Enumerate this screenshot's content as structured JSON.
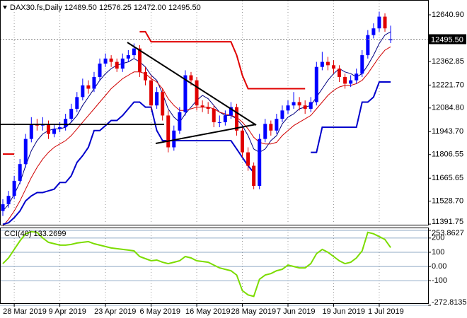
{
  "chart_data": [
    {
      "type": "candlestick",
      "subtitle": "DAX30.fs,Daily  12489.50 12576.25 12472.00 12495.50",
      "categories": [
        null,
        null,
        "28 Mar 2019",
        null,
        null,
        null,
        null,
        null,
        null,
        null,
        "9 Apr 2019",
        null,
        null,
        null,
        null,
        null,
        null,
        null,
        "23 Apr 2019",
        null,
        null,
        null,
        null,
        null,
        null,
        null,
        "6 May 2019",
        null,
        null,
        null,
        null,
        null,
        null,
        null,
        "16 May 2019",
        null,
        null,
        null,
        null,
        null,
        null,
        null,
        "28 May 2019",
        null,
        null,
        null,
        null,
        null,
        null,
        null,
        "7 Jun 2019",
        null,
        null,
        null,
        null,
        null,
        null,
        null,
        "19 Jun 2019",
        null,
        null,
        null,
        null,
        null,
        null,
        null,
        "1 Jul 2019",
        null,
        null
      ],
      "open": [
        11470,
        11510,
        11560,
        11650,
        11750,
        11900,
        11990,
        11980,
        11990,
        11930,
        11960,
        11970,
        12020,
        12080,
        12150,
        12220,
        12200,
        12270,
        12350,
        12380,
        12360,
        12320,
        12380,
        12400,
        12440,
        12300,
        12250,
        12100,
        12180,
        12040,
        11850,
        11950,
        12060,
        12280,
        12250,
        12100,
        12090,
        12080,
        12000,
        12000,
        12040,
        12090,
        11950,
        11820,
        11740,
        11620,
        11900,
        11990,
        11950,
        12020,
        12070,
        12100,
        12120,
        12100,
        12080,
        12120,
        12330,
        12360,
        12340,
        12320,
        12270,
        12230,
        12250,
        12290,
        12400,
        12520,
        12560,
        12630,
        12489.5
      ],
      "high": [
        11540,
        11590,
        11680,
        11780,
        11930,
        12030,
        12020,
        12030,
        12010,
        11990,
        12000,
        12050,
        12110,
        12180,
        12260,
        12250,
        12300,
        12380,
        12410,
        12400,
        12380,
        12410,
        12430,
        12470,
        12460,
        12330,
        12280,
        12210,
        12200,
        12070,
        11980,
        12090,
        12310,
        12300,
        12270,
        12130,
        12120,
        12100,
        12040,
        12070,
        12120,
        12110,
        11970,
        11850,
        11760,
        11930,
        12020,
        12010,
        12050,
        12100,
        12130,
        12180,
        12150,
        12130,
        12150,
        12360,
        12420,
        12390,
        12370,
        12340,
        12290,
        12280,
        12320,
        12430,
        12550,
        12590,
        12660,
        12650,
        12576.25
      ],
      "low": [
        11440,
        11490,
        11540,
        11630,
        11730,
        11880,
        11950,
        11950,
        11900,
        11910,
        11940,
        11950,
        12000,
        12060,
        12130,
        12170,
        12180,
        12250,
        12330,
        12330,
        12300,
        12300,
        12360,
        12380,
        12270,
        12220,
        12070,
        12080,
        12010,
        11820,
        11830,
        11930,
        12040,
        12220,
        12070,
        12060,
        12050,
        11970,
        11970,
        11980,
        12020,
        11920,
        11790,
        11710,
        11600,
        11600,
        11880,
        11920,
        11930,
        12000,
        12050,
        12080,
        12070,
        12050,
        12060,
        12100,
        12310,
        12310,
        12290,
        12240,
        12200,
        12210,
        12230,
        12270,
        12380,
        12500,
        12540,
        12540,
        12472
      ],
      "close": [
        11510,
        11560,
        11650,
        11750,
        11900,
        11990,
        11980,
        11990,
        11930,
        11960,
        11970,
        12020,
        12080,
        12150,
        12220,
        12200,
        12270,
        12350,
        12380,
        12360,
        12320,
        12380,
        12400,
        12440,
        12300,
        12250,
        12100,
        12180,
        12040,
        11850,
        11950,
        12060,
        12280,
        12250,
        12100,
        12090,
        12080,
        12000,
        12000,
        12040,
        12090,
        11950,
        11820,
        11740,
        11620,
        11900,
        11990,
        11950,
        12020,
        12070,
        12100,
        12120,
        12100,
        12080,
        12120,
        12330,
        12360,
        12340,
        12320,
        12270,
        12230,
        12250,
        12290,
        12400,
        12520,
        12560,
        12630,
        12560,
        12495.5
      ],
      "up_color": "#0000ff",
      "down_color": "#e00000",
      "series": [
        {
          "color": "#000080",
          "values": [
            11470,
            11510,
            11570,
            11640,
            11740,
            11830,
            11890,
            11930,
            11950,
            11960,
            11960,
            11970,
            12000,
            12040,
            12100,
            12150,
            12200,
            12250,
            12290,
            12320,
            12340,
            12350,
            12360,
            12380,
            12360,
            12330,
            12280,
            12250,
            12170,
            12080,
            12030,
            12000,
            12050,
            12090,
            12130,
            12160,
            12140,
            12100,
            12060,
            12040,
            12040,
            12020,
            11980,
            11920,
            11840,
            11820,
            11840,
            11890,
            11920,
            11990,
            12030,
            12050,
            12080,
            12090,
            12100,
            12150,
            12200,
            12250,
            12290,
            12320,
            12300,
            12290,
            12270,
            12290,
            12340,
            12400,
            12470,
            12520,
            12540
          ]
        },
        {
          "color": "#d00000",
          "values": [
            11380,
            11420,
            11470,
            11530,
            11600,
            11670,
            11730,
            11780,
            11820,
            11850,
            11870,
            11890,
            11920,
            11960,
            12000,
            12040,
            12080,
            12120,
            12160,
            12200,
            12230,
            12260,
            12280,
            12300,
            12300,
            12290,
            12260,
            12240,
            12200,
            12140,
            12100,
            12070,
            12070,
            12080,
            12090,
            12090,
            12090,
            12080,
            12060,
            12050,
            12040,
            12030,
            12000,
            11960,
            11910,
            11880,
            11870,
            11870,
            11880,
            11920,
            11950,
            11980,
            12000,
            12020,
            12040,
            12080,
            12120,
            12160,
            12190,
            12210,
            12220,
            12220,
            12230,
            12250,
            12290,
            12340,
            12390,
            12430,
            12450
          ]
        },
        {
          "color": "#e00000",
          "values": [
            11810,
            11810,
            11810,
            null,
            null,
            null,
            null,
            null,
            null,
            null,
            null,
            null,
            null,
            null,
            null,
            null,
            null,
            null,
            null,
            null,
            null,
            null,
            null,
            null,
            12540,
            12540,
            12480,
            12480,
            12480,
            12480,
            12480,
            12480,
            12480,
            12480,
            12480,
            12480,
            12480,
            12480,
            12480,
            12480,
            12480,
            12400,
            12280,
            12200,
            12200,
            12200,
            12200,
            12200,
            12200,
            12200,
            12200,
            12200,
            12200,
            12200,
            null,
            null,
            null,
            null,
            null,
            null,
            null,
            null,
            null,
            null,
            null,
            null,
            null,
            null,
            null
          ]
        },
        {
          "color": "#0000cc",
          "values": [
            11390,
            11400,
            11430,
            11470,
            11530,
            11560,
            11580,
            11580,
            11590,
            11600,
            11640,
            11640,
            11680,
            11760,
            11800,
            11850,
            11950,
            11950,
            11980,
            12010,
            12010,
            12040,
            12080,
            12120,
            12120,
            12090,
            12090,
            11950,
            11890,
            11890,
            11890,
            11890,
            11890,
            11890,
            11890,
            11890,
            11890,
            11890,
            11890,
            11890,
            11890,
            11840,
            11790,
            11740,
            11700,
            null,
            null,
            null,
            null,
            null,
            null,
            null,
            null,
            null,
            11820,
            11820,
            11970,
            11970,
            11970,
            11970,
            11970,
            11970,
            11970,
            12120,
            12120,
            12150,
            12240,
            12240,
            12240
          ]
        }
      ],
      "current_price": {
        "value": 12495.5,
        "label": "12495.50"
      },
      "ylim": [
        11388,
        12721
      ],
      "yticks": [
        {
          "value": 12640.9,
          "label": "12640.90"
        },
        {
          "value": 12362.85,
          "label": "12362.85"
        },
        {
          "value": 12221.7,
          "label": "12221.70"
        },
        {
          "value": 12084.8,
          "label": "12084.80"
        },
        {
          "value": 11943.7,
          "label": "11943.70"
        },
        {
          "value": 11806.55,
          "label": "11806.55"
        },
        {
          "value": 11665.65,
          "label": "11665.65"
        },
        {
          "value": 11528.7,
          "label": "11528.70"
        },
        {
          "value": 11391.75,
          "label": "11391.75"
        }
      ],
      "grid": true
    },
    {
      "type": "line",
      "title": "CCI(40) 133.2699",
      "series": [
        {
          "color": "#7cdc00",
          "values": [
            20,
            60,
            120,
            180,
            230,
            245,
            240,
            200,
            170,
            160,
            150,
            150,
            155,
            165,
            170,
            175,
            160,
            150,
            140,
            130,
            125,
            120,
            115,
            110,
            70,
            55,
            40,
            45,
            30,
            20,
            30,
            40,
            70,
            60,
            40,
            35,
            30,
            10,
            -10,
            -20,
            -30,
            -60,
            -170,
            -200,
            -210,
            -90,
            -60,
            -50,
            -30,
            -20,
            10,
            0,
            -10,
            -10,
            20,
            90,
            120,
            100,
            70,
            40,
            20,
            30,
            60,
            110,
            240,
            230,
            210,
            190,
            133.2699
          ]
        }
      ],
      "ylim": [
        -272.8135,
        253.8627
      ],
      "yticks": [
        {
          "value": 253.8627,
          "label": "253.8627"
        },
        200,
        100,
        {
          "value": 0,
          "label": "0.00"
        },
        -100,
        {
          "value": -272.8135,
          "label": "-272.8135"
        }
      ],
      "grid": true
    }
  ]
}
